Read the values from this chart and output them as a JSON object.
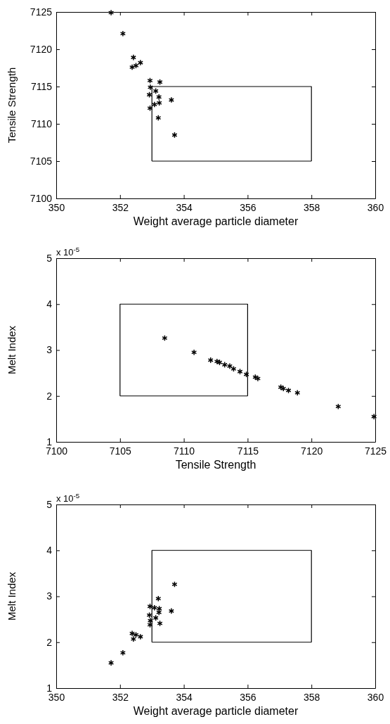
{
  "chart_data": [
    {
      "type": "scatter",
      "xlabel": "Weight average particle diameter",
      "ylabel": "Tensile Strength",
      "xlim": [
        350,
        360
      ],
      "xticks": [
        350,
        352,
        354,
        356,
        358,
        360
      ],
      "ylim": [
        7100,
        7125
      ],
      "yticks": [
        7100,
        7105,
        7110,
        7115,
        7120,
        7125
      ],
      "series": [
        {
          "color": "#000000",
          "marker": "cross",
          "x": [
            351.72,
            352.09,
            352.42,
            352.64,
            352.5,
            352.38,
            352.94,
            353.25,
            352.95,
            353.12,
            352.92,
            353.22,
            353.61,
            353.23,
            353.08,
            352.94,
            353.2,
            353.71
          ],
          "values": [
            7124.9,
            7122.1,
            7118.9,
            7118.2,
            7117.8,
            7117.6,
            7115.8,
            7115.6,
            7114.9,
            7114.4,
            7113.9,
            7113.6,
            7113.2,
            7112.8,
            7112.6,
            7112.1,
            7110.8,
            7108.5
          ]
        },
        {
          "type": "line",
          "color": "#000000",
          "marker": "none",
          "x": [
            353,
            353,
            358,
            358
          ],
          "values": [
            7105,
            7115,
            7115,
            7105
          ]
        },
        {
          "type": "line",
          "color": "#000000",
          "marker": "none",
          "x": [
            353,
            358
          ],
          "values": [
            7105,
            7105
          ]
        }
      ]
    },
    {
      "type": "scatter",
      "xlabel": "Tensile Strength",
      "ylabel": "Melt Index",
      "annotations": [
        "x 10$^{-5}$"
      ],
      "xlim": [
        7100,
        7125
      ],
      "xticks": [
        7100,
        7105,
        7110,
        7115,
        7120,
        7125
      ],
      "ylim": [
        1,
        5
      ],
      "yticks": [
        1,
        2,
        3,
        4,
        5
      ],
      "series": [
        {
          "color": "#000000",
          "marker": "cross",
          "x": [
            7124.9,
            7122.1,
            7118.9,
            7118.2,
            7117.8,
            7117.6,
            7115.8,
            7115.6,
            7114.9,
            7114.4,
            7113.9,
            7113.6,
            7113.2,
            7112.8,
            7112.6,
            7112.1,
            7110.8,
            7108.5
          ],
          "values": [
            1.55,
            1.77,
            2.07,
            2.12,
            2.16,
            2.19,
            2.38,
            2.41,
            2.47,
            2.53,
            2.59,
            2.65,
            2.68,
            2.73,
            2.75,
            2.78,
            2.95,
            3.26
          ]
        },
        {
          "type": "line",
          "color": "#000000",
          "marker": "none",
          "x": [
            7105,
            7105,
            7115,
            7115
          ],
          "values": [
            2,
            4,
            4,
            2
          ]
        },
        {
          "type": "line",
          "color": "#000000",
          "marker": "none",
          "x": [
            7105,
            7115
          ],
          "values": [
            2,
            2
          ]
        }
      ]
    },
    {
      "type": "scatter",
      "xlabel": "Weight average particle diameter",
      "ylabel": "Melt Index",
      "annotations": [
        "x 10$^{-5}$"
      ],
      "xlim": [
        350,
        360
      ],
      "xticks": [
        350,
        352,
        354,
        356,
        358,
        360
      ],
      "ylim": [
        1,
        5
      ],
      "yticks": [
        1,
        2,
        3,
        4,
        5
      ],
      "series": [
        {
          "color": "#000000",
          "marker": "cross",
          "x": [
            351.72,
            352.09,
            352.42,
            352.64,
            352.5,
            352.38,
            352.94,
            353.25,
            352.95,
            353.12,
            352.92,
            353.22,
            353.61,
            353.23,
            353.08,
            352.94,
            353.2,
            353.71
          ],
          "values": [
            1.55,
            1.77,
            2.07,
            2.12,
            2.16,
            2.19,
            2.38,
            2.41,
            2.47,
            2.53,
            2.59,
            2.65,
            2.68,
            2.73,
            2.75,
            2.78,
            2.95,
            3.26
          ]
        },
        {
          "type": "line",
          "color": "#000000",
          "marker": "none",
          "x": [
            353,
            353,
            358,
            358
          ],
          "values": [
            2,
            4,
            4,
            2
          ]
        },
        {
          "type": "line",
          "color": "#000000",
          "marker": "none",
          "x": [
            353,
            358
          ],
          "values": [
            2,
            2
          ]
        }
      ]
    }
  ]
}
